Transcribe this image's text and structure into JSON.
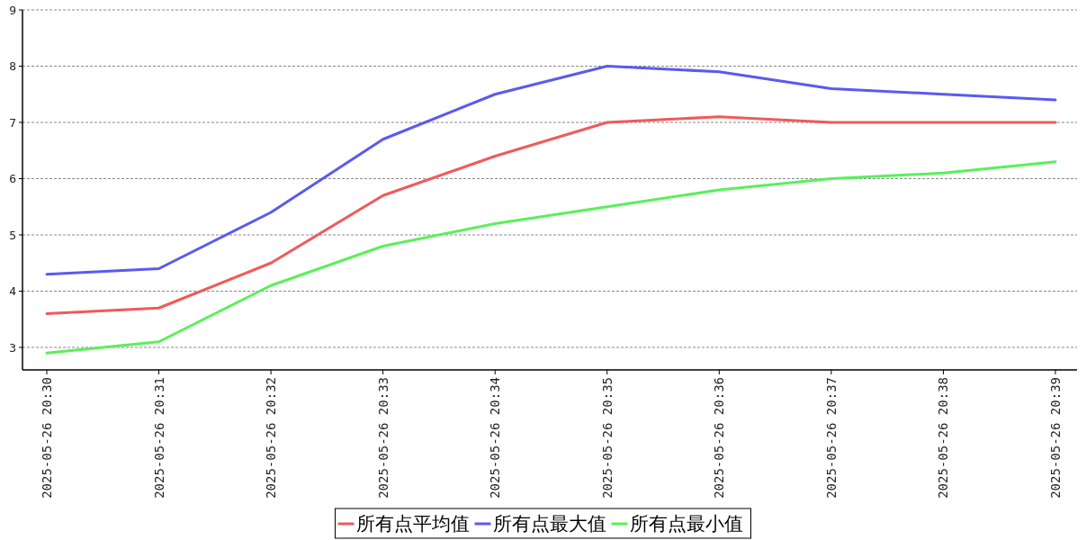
{
  "chart_data": {
    "type": "line",
    "categories": [
      "2025-05-26 20:30",
      "2025-05-26 20:31",
      "2025-05-26 20:32",
      "2025-05-26 20:33",
      "2025-05-26 20:34",
      "2025-05-26 20:35",
      "2025-05-26 20:36",
      "2025-05-26 20:37",
      "2025-05-26 20:38",
      "2025-05-26 20:39"
    ],
    "series": [
      {
        "name": "所有点平均值",
        "color": "#f05a5a",
        "values": [
          3.6,
          3.7,
          4.5,
          5.7,
          6.4,
          7.0,
          7.1,
          7.0,
          7.0,
          7.0
        ]
      },
      {
        "name": "所有点最大值",
        "color": "#5a5af0",
        "values": [
          4.3,
          4.4,
          5.4,
          6.7,
          7.5,
          8.0,
          7.9,
          7.6,
          7.5,
          7.4
        ]
      },
      {
        "name": "所有点最小值",
        "color": "#5af05a",
        "values": [
          2.9,
          3.1,
          4.1,
          4.8,
          5.2,
          5.5,
          5.8,
          6.0,
          6.1,
          6.3
        ]
      }
    ],
    "ylim": [
      2.6,
      9
    ],
    "yticks": [
      3,
      4,
      5,
      6,
      7,
      8,
      9
    ],
    "grid": "y",
    "legend": "bottom",
    "marker": "none",
    "line_style": "solid"
  }
}
